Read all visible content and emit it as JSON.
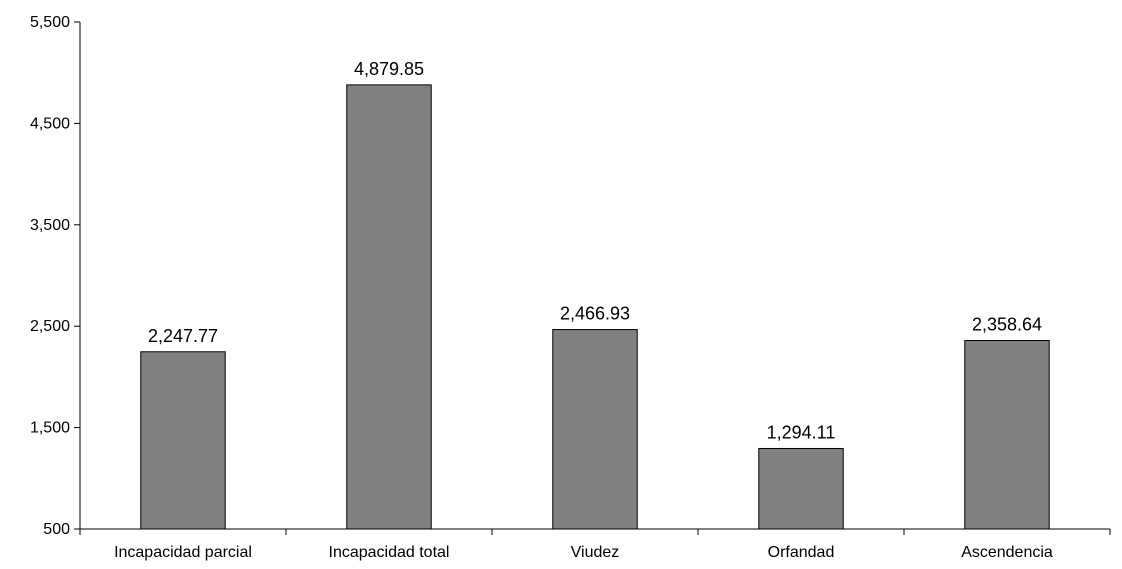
{
  "chart_data": {
    "type": "bar",
    "categories": [
      "Incapacidad parcial",
      "Incapacidad total",
      "Viudez",
      "Orfandad",
      "Ascendencia"
    ],
    "values": [
      2247.77,
      4879.85,
      2466.93,
      1294.11,
      2358.64
    ],
    "data_labels": [
      "2,247.77",
      "4,879.85",
      "2,466.93",
      "1,294.11",
      "2,358.64"
    ],
    "title": "",
    "xlabel": "",
    "ylabel": "",
    "ylim": [
      500,
      5500
    ],
    "yticks": [
      500,
      1500,
      2500,
      3500,
      4500,
      5500
    ],
    "ytick_labels": [
      "500",
      "1,500",
      "2,500",
      "3,500",
      "4,500",
      "5,500"
    ],
    "grid": false,
    "legend": "none",
    "bar_color": "#808080",
    "bar_edge_color": "#000000"
  }
}
